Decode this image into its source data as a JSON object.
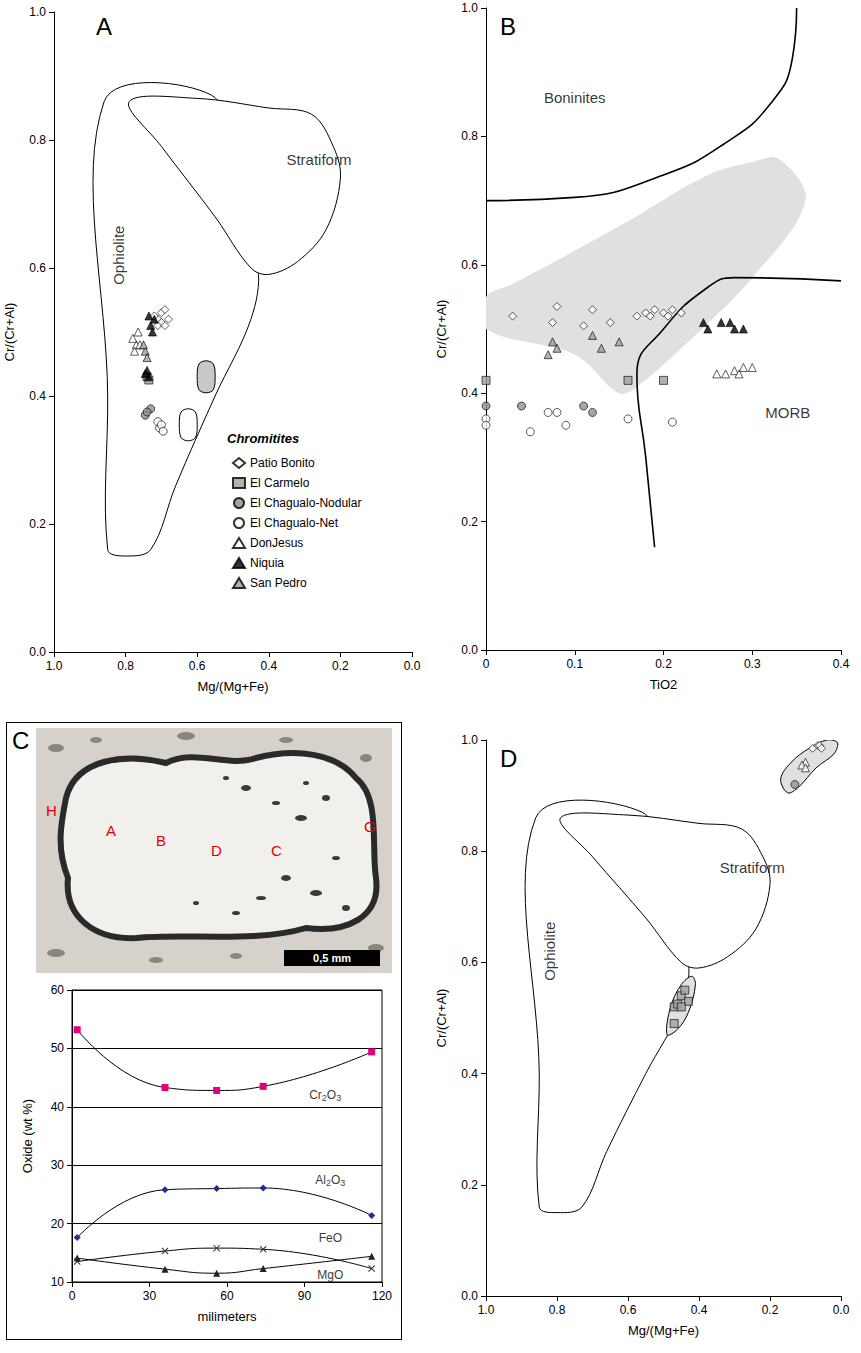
{
  "chart_data": [
    {
      "panel": "A",
      "type": "scatter",
      "x_label": "Mg/(Mg+Fe)",
      "y_label": "Cr/(Cr+Al)",
      "xlim": [
        1,
        0
      ],
      "xticks": [
        {
          "value": 1,
          "label": "1.0"
        },
        0.8,
        0.6,
        0.4,
        0.2,
        {
          "value": 0,
          "label": "0.0"
        }
      ],
      "ylim": [
        0,
        1
      ],
      "yticks": [
        {
          "value": 0,
          "label": "0.0"
        },
        0.2,
        0.4,
        0.6,
        0.8,
        {
          "value": 1,
          "label": "1.0"
        }
      ],
      "fields": [
        {
          "name": "Ophiolite",
          "color": "#ffffff",
          "line_style": "solid",
          "points": [
            [
              0.86,
              0.86
            ],
            [
              0.56,
              0.87
            ],
            [
              0.5,
              0.75
            ],
            [
              0.43,
              0.6
            ],
            [
              0.45,
              0.52
            ],
            [
              0.55,
              0.4
            ],
            [
              0.66,
              0.26
            ],
            [
              0.73,
              0.16
            ],
            [
              0.8,
              0.15
            ],
            [
              0.85,
              0.16
            ],
            [
              0.85,
              0.4
            ]
          ]
        },
        {
          "name": "Stratiform",
          "color": "#ffffff",
          "line_style": "solid",
          "points": [
            [
              0.79,
              0.86
            ],
            [
              0.6,
              0.865
            ],
            [
              0.4,
              0.85
            ],
            [
              0.28,
              0.84
            ],
            [
              0.22,
              0.79
            ],
            [
              0.2,
              0.74
            ],
            [
              0.24,
              0.66
            ],
            [
              0.32,
              0.61
            ],
            [
              0.4,
              0.59
            ],
            [
              0.45,
              0.6
            ],
            [
              0.55,
              0.68
            ],
            [
              0.7,
              0.79
            ]
          ]
        },
        {
          "color": "#c8c8c8",
          "line_style": "solid",
          "points": [
            [
              0.575,
              0.455
            ],
            [
              0.555,
              0.45
            ],
            [
              0.55,
              0.43
            ],
            [
              0.555,
              0.41
            ],
            [
              0.575,
              0.405
            ],
            [
              0.595,
              0.41
            ],
            [
              0.6,
              0.43
            ],
            [
              0.595,
              0.45
            ]
          ]
        },
        {
          "color": "#ffffff",
          "line_style": "solid",
          "points": [
            [
              0.625,
              0.38
            ],
            [
              0.605,
              0.375
            ],
            [
              0.6,
              0.355
            ],
            [
              0.605,
              0.335
            ],
            [
              0.625,
              0.33
            ],
            [
              0.645,
              0.335
            ],
            [
              0.65,
              0.355
            ],
            [
              0.645,
              0.375
            ]
          ]
        }
      ],
      "annotations": [
        {
          "text": "Ophiolite",
          "x": 0.82,
          "y": 0.62,
          "orientation": "vertical"
        },
        {
          "text": "Stratiform",
          "x": 0.26,
          "y": 0.77
        }
      ],
      "legend": "lower right",
      "legend_title": "Chromitites",
      "series": [
        {
          "name": "Patio Bonito",
          "marker": "diamond",
          "color": "#ffffff",
          "x": [
            0.7,
            0.71,
            0.69,
            0.72,
            0.7,
            0.68,
            0.71,
            0.69
          ],
          "y": [
            0.53,
            0.52,
            0.535,
            0.525,
            0.515,
            0.52,
            0.51,
            0.51
          ]
        },
        {
          "name": "El Carmelo",
          "marker": "square",
          "color": "#a0a0a0",
          "x": [
            0.74,
            0.735
          ],
          "y": [
            0.43,
            0.425
          ]
        },
        {
          "name": "El Chagualo-Nodular",
          "marker": "circle",
          "color": "#909090",
          "x": [
            0.745,
            0.73,
            0.74
          ],
          "y": [
            0.37,
            0.38,
            0.375
          ]
        },
        {
          "name": "El Chagualo-Net",
          "marker": "circle",
          "color": "#ffffff",
          "x": [
            0.705,
            0.71,
            0.7,
            0.695
          ],
          "y": [
            0.35,
            0.36,
            0.355,
            0.345
          ]
        },
        {
          "name": "DonJesus",
          "marker": "triangle",
          "color": "#ffffff",
          "x": [
            0.77,
            0.78,
            0.765,
            0.76,
            0.775
          ],
          "y": [
            0.48,
            0.49,
            0.5,
            0.48,
            0.47
          ]
        },
        {
          "name": "Niquia",
          "marker": "triangle",
          "color": "#000000",
          "x": [
            0.73,
            0.72,
            0.735,
            0.725,
            0.74,
            0.735,
            0.745
          ],
          "y": [
            0.51,
            0.52,
            0.525,
            0.5,
            0.44,
            0.43,
            0.435
          ]
        },
        {
          "name": "San Pedro",
          "marker": "triangle",
          "color": "#a0a0a0",
          "x": [
            0.745,
            0.74,
            0.75
          ],
          "y": [
            0.47,
            0.46,
            0.48
          ]
        }
      ]
    },
    {
      "panel": "B",
      "type": "scatter",
      "x_label": "TiO2",
      "y_label": "Cr/(Cr+Al)",
      "xlim": [
        0,
        0.4
      ],
      "xticks": [
        0,
        0.1,
        0.2,
        0.3,
        0.4
      ],
      "ylim": [
        0,
        1
      ],
      "yticks": [
        {
          "value": 0,
          "label": "0.0"
        },
        0.2,
        0.4,
        0.6,
        0.8,
        {
          "value": 1,
          "label": "1.0"
        }
      ],
      "fields": [
        {
          "color": "#e0e0e0",
          "line_style": "none",
          "points": [
            [
              0.0,
              0.55
            ],
            [
              0.03,
              0.57
            ],
            [
              0.15,
              0.66
            ],
            [
              0.25,
              0.74
            ],
            [
              0.3,
              0.76
            ],
            [
              0.33,
              0.765
            ],
            [
              0.36,
              0.7
            ],
            [
              0.3,
              0.58
            ],
            [
              0.22,
              0.47
            ],
            [
              0.17,
              0.41
            ],
            [
              0.15,
              0.4
            ],
            [
              0.1,
              0.46
            ],
            [
              0.0,
              0.5
            ]
          ]
        }
      ],
      "lines": [
        {
          "line_style": "solid",
          "points": [
            [
              0,
              0.7
            ],
            [
              0.1,
              0.705
            ],
            [
              0.2,
              0.74
            ],
            [
              0.27,
              0.79
            ],
            [
              0.32,
              0.85
            ],
            [
              0.345,
              0.92
            ],
            [
              0.35,
              1.0
            ]
          ]
        },
        {
          "line_style": "solid",
          "points": [
            [
              0.19,
              0.16
            ],
            [
              0.18,
              0.3
            ],
            [
              0.17,
              0.43
            ],
            [
              0.2,
              0.5
            ],
            [
              0.25,
              0.565
            ],
            [
              0.28,
              0.58
            ],
            [
              0.4,
              0.575
            ]
          ]
        }
      ],
      "annotations": [
        {
          "text": "Boninites",
          "x": 0.1,
          "y": 0.86
        },
        {
          "text": "MORB",
          "x": 0.34,
          "y": 0.37
        }
      ],
      "series": [
        {
          "name": "Patio Bonito",
          "marker": "diamond",
          "color": "#ffffff",
          "x": [
            0.03,
            0.075,
            0.08,
            0.11,
            0.12,
            0.14,
            0.17,
            0.18,
            0.185,
            0.19,
            0.2,
            0.205,
            0.21,
            0.22
          ],
          "y": [
            0.52,
            0.51,
            0.535,
            0.505,
            0.53,
            0.51,
            0.52,
            0.525,
            0.52,
            0.53,
            0.525,
            0.52,
            0.53,
            0.525
          ]
        },
        {
          "name": "El Carmelo",
          "marker": "square",
          "color": "#a0a0a0",
          "x": [
            0.0,
            0.16,
            0.2
          ],
          "y": [
            0.42,
            0.42,
            0.42
          ]
        },
        {
          "name": "El Chagualo-Nodular",
          "marker": "circle",
          "color": "#909090",
          "x": [
            0.0,
            0.04,
            0.11,
            0.12
          ],
          "y": [
            0.38,
            0.38,
            0.38,
            0.37
          ]
        },
        {
          "name": "El Chagualo-Net",
          "marker": "circle",
          "color": "#ffffff",
          "x": [
            0.0,
            0.0,
            0.05,
            0.07,
            0.08,
            0.09,
            0.16,
            0.21
          ],
          "y": [
            0.36,
            0.35,
            0.34,
            0.37,
            0.37,
            0.35,
            0.36,
            0.355
          ]
        },
        {
          "name": "DonJesus",
          "marker": "triangle",
          "color": "#ffffff",
          "x": [
            0.26,
            0.27,
            0.28,
            0.285,
            0.29,
            0.3
          ],
          "y": [
            0.43,
            0.43,
            0.435,
            0.43,
            0.44,
            0.44
          ]
        },
        {
          "name": "Niquia",
          "marker": "triangle",
          "color": "#000000",
          "x": [
            0.245,
            0.25,
            0.265,
            0.275,
            0.28,
            0.29
          ],
          "y": [
            0.51,
            0.5,
            0.51,
            0.51,
            0.5,
            0.5
          ]
        },
        {
          "name": "San Pedro",
          "marker": "triangle",
          "color": "#a0a0a0",
          "x": [
            0.07,
            0.075,
            0.08,
            0.12,
            0.13,
            0.15
          ],
          "y": [
            0.46,
            0.48,
            0.47,
            0.49,
            0.47,
            0.48
          ]
        }
      ]
    },
    {
      "panel": "C",
      "type": "line",
      "x_label": "milimeters",
      "y_label": "Oxide (wt %)",
      "xlim": [
        0,
        120
      ],
      "xticks": [
        0,
        30,
        60,
        90,
        120
      ],
      "ylim": [
        10,
        60
      ],
      "yticks": [
        10,
        20,
        30,
        40,
        50,
        60
      ],
      "grid": true,
      "x": [
        2,
        36,
        56,
        74,
        116
      ],
      "series": [
        {
          "name": "Cr2O3",
          "marker": "square",
          "color": "#e4007c",
          "values": [
            53.2,
            43.3,
            42.8,
            43.5,
            49.4
          ]
        },
        {
          "name": "Al2O3",
          "marker": "diamond",
          "color": "#1f2f8f",
          "values": [
            17.6,
            25.8,
            26.0,
            26.1,
            21.4
          ]
        },
        {
          "name": "FeO",
          "marker": "x",
          "color": "#333333",
          "values": [
            13.5,
            15.3,
            15.8,
            15.6,
            12.3
          ]
        },
        {
          "name": "MgO",
          "marker": "triangle",
          "color": "#222222",
          "values": [
            14.1,
            12.2,
            11.5,
            12.3,
            14.4
          ]
        }
      ],
      "annotations": [
        {
          "text": "Cr2O3",
          "x": 98,
          "y": 42
        },
        {
          "text": "Al2O3",
          "x": 100,
          "y": 27.5
        },
        {
          "text": "FeO",
          "x": 100,
          "y": 17.5
        },
        {
          "text": "MgO",
          "x": 100,
          "y": 11.2
        }
      ],
      "image": {
        "labels": [
          "H",
          "A",
          "B",
          "D",
          "C",
          "G"
        ],
        "scale_bar": "0,5 mm"
      }
    },
    {
      "panel": "D",
      "type": "scatter",
      "x_label": "Mg/(Mg+Fe)",
      "y_label": "Cr/(Cr+Al)",
      "xlim": [
        1,
        0
      ],
      "xticks": [
        {
          "value": 1,
          "label": "1.0"
        },
        0.8,
        0.6,
        0.4,
        0.2,
        {
          "value": 0,
          "label": "0.0"
        }
      ],
      "ylim": [
        0,
        1
      ],
      "yticks": [
        {
          "value": 0,
          "label": "0.0"
        },
        0.2,
        0.4,
        0.6,
        0.8,
        {
          "value": 1,
          "label": "1.0"
        }
      ],
      "fields": [
        {
          "name": "Ophiolite",
          "color": "#ffffff",
          "line_style": "solid",
          "points": [
            [
              0.86,
              0.86
            ],
            [
              0.56,
              0.87
            ],
            [
              0.5,
              0.75
            ],
            [
              0.43,
              0.6
            ],
            [
              0.45,
              0.52
            ],
            [
              0.55,
              0.4
            ],
            [
              0.66,
              0.26
            ],
            [
              0.73,
              0.16
            ],
            [
              0.8,
              0.15
            ],
            [
              0.85,
              0.16
            ],
            [
              0.85,
              0.4
            ]
          ]
        },
        {
          "name": "Stratiform",
          "color": "#ffffff",
          "line_style": "solid",
          "points": [
            [
              0.79,
              0.86
            ],
            [
              0.6,
              0.865
            ],
            [
              0.4,
              0.85
            ],
            [
              0.28,
              0.84
            ],
            [
              0.22,
              0.79
            ],
            [
              0.2,
              0.74
            ],
            [
              0.24,
              0.66
            ],
            [
              0.32,
              0.61
            ],
            [
              0.4,
              0.59
            ],
            [
              0.45,
              0.6
            ],
            [
              0.55,
              0.68
            ],
            [
              0.7,
              0.79
            ]
          ]
        },
        {
          "color": "#e0e0e0",
          "line_style": "solid",
          "points": [
            [
              0.17,
              0.93
            ],
            [
              0.14,
              0.96
            ],
            [
              0.09,
              0.985
            ],
            [
              0.04,
              1.0
            ],
            [
              0.01,
              0.995
            ],
            [
              0.02,
              0.975
            ],
            [
              0.07,
              0.95
            ],
            [
              0.12,
              0.915
            ],
            [
              0.15,
              0.905
            ]
          ]
        },
        {
          "color": "#e0e0e0",
          "line_style": "solid",
          "points": [
            [
              0.49,
              0.47
            ],
            [
              0.48,
              0.52
            ],
            [
              0.45,
              0.56
            ],
            [
              0.42,
              0.575
            ],
            [
              0.41,
              0.56
            ],
            [
              0.43,
              0.51
            ],
            [
              0.46,
              0.48
            ]
          ]
        }
      ],
      "annotations": [
        {
          "text": "Ophiolite",
          "x": 0.82,
          "y": 0.62,
          "orientation": "vertical"
        },
        {
          "text": "Stratiform",
          "x": 0.25,
          "y": 0.77
        }
      ],
      "series": [
        {
          "name": "Patio Bonito",
          "marker": "diamond",
          "color": "#ffffff",
          "x": [
            0.08,
            0.065,
            0.06,
            0.055
          ],
          "y": [
            0.985,
            0.99,
            0.99,
            0.985
          ]
        },
        {
          "name": "DonJesus",
          "marker": "triangle",
          "color": "#ffffff",
          "x": [
            0.1,
            0.11,
            0.1
          ],
          "y": [
            0.96,
            0.955,
            0.95
          ]
        },
        {
          "name": "El Chagualo-Nodular",
          "marker": "circle",
          "color": "#909090",
          "x": [
            0.13
          ],
          "y": [
            0.92
          ]
        },
        {
          "name": "El Carmelo",
          "marker": "square",
          "color": "#a0a0a0",
          "x": [
            0.47,
            0.46,
            0.45,
            0.44,
            0.43,
            0.47,
            0.45
          ],
          "y": [
            0.52,
            0.525,
            0.54,
            0.55,
            0.53,
            0.49,
            0.52
          ]
        }
      ]
    }
  ]
}
